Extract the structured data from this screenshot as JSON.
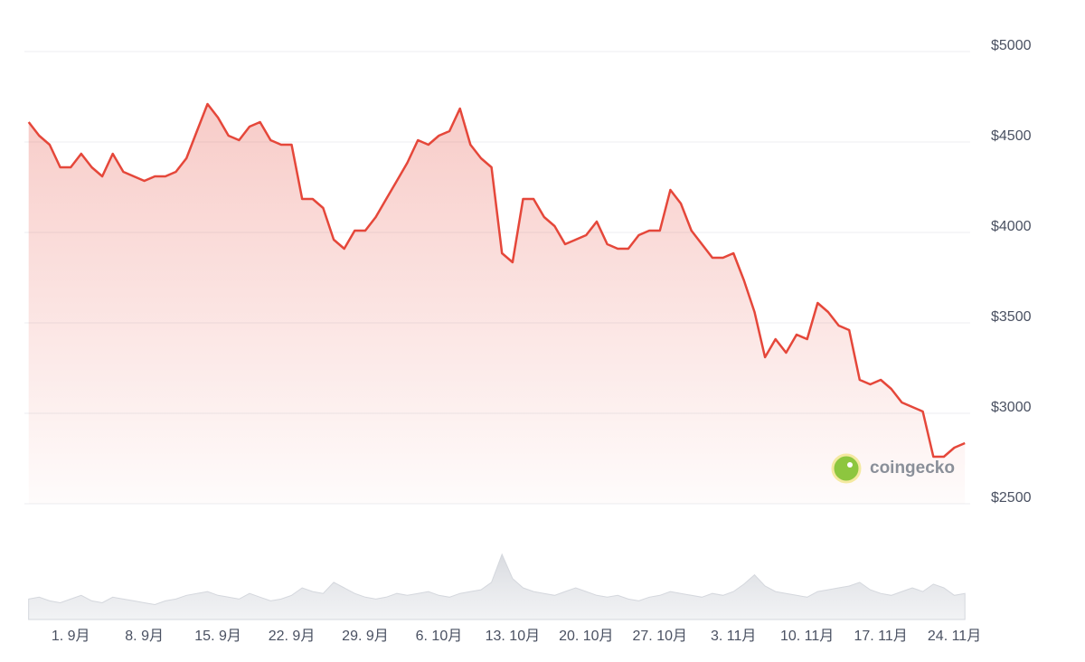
{
  "chart_data": {
    "type": "line",
    "series": [
      {
        "color": "#e5473a",
        "values": [
          4610,
          4535,
          4485,
          4360,
          4360,
          4435,
          4360,
          4310,
          4435,
          4335,
          4310,
          4285,
          4310,
          4310,
          4335,
          4410,
          4560,
          4710,
          4635,
          4535,
          4510,
          4585,
          4610,
          4510,
          4485,
          4485,
          4185,
          4185,
          4135,
          3960,
          3910,
          4010,
          4010,
          4085,
          4185,
          4285,
          4385,
          4510,
          4485,
          4535,
          4560,
          4685,
          4485,
          4410,
          4360,
          3885,
          3835,
          4185,
          4185,
          4085,
          4035,
          3935,
          3960,
          3985,
          4060,
          3935,
          3910,
          3910,
          3985,
          4010,
          4010,
          4235,
          4160,
          4010,
          3935,
          3860,
          3860,
          3885,
          3735,
          3560,
          3310,
          3410,
          3335,
          3435,
          3410,
          3610,
          3560,
          3485,
          3460,
          3185,
          3160,
          3185,
          3135,
          3060,
          3035,
          3010,
          2760,
          2760,
          2810,
          2835
        ]
      }
    ],
    "volume": [
      22,
      24,
      20,
      18,
      22,
      26,
      20,
      18,
      24,
      22,
      20,
      18,
      16,
      20,
      22,
      26,
      28,
      30,
      26,
      24,
      22,
      28,
      24,
      20,
      22,
      26,
      34,
      30,
      28,
      40,
      34,
      28,
      24,
      22,
      24,
      28,
      26,
      28,
      30,
      26,
      24,
      28,
      30,
      32,
      40,
      70,
      44,
      34,
      30,
      28,
      26,
      30,
      34,
      30,
      26,
      24,
      26,
      22,
      20,
      24,
      26,
      30,
      28,
      26,
      24,
      28,
      26,
      30,
      38,
      48,
      36,
      30,
      28,
      26,
      24,
      30,
      32,
      34,
      36,
      40,
      32,
      28,
      26,
      30,
      34,
      30,
      38,
      34,
      26,
      28
    ],
    "xlim": [
      -0.4,
      89.5
    ],
    "xticks": [
      {
        "value": 4,
        "label": "1. 9月"
      },
      {
        "value": 11,
        "label": "8. 9月"
      },
      {
        "value": 18,
        "label": "15. 9月"
      },
      {
        "value": 25,
        "label": "22. 9月"
      },
      {
        "value": 32,
        "label": "29. 9月"
      },
      {
        "value": 39,
        "label": "6. 10月"
      },
      {
        "value": 46,
        "label": "13. 10月"
      },
      {
        "value": 53,
        "label": "20. 10月"
      },
      {
        "value": 60,
        "label": "27. 10月"
      },
      {
        "value": 67,
        "label": "3. 11月"
      },
      {
        "value": 74,
        "label": "10. 11月"
      },
      {
        "value": 81,
        "label": "17. 11月"
      },
      {
        "value": 88,
        "label": "24. 11月"
      }
    ],
    "ylim": [
      2500,
      5000
    ],
    "yticks": [
      {
        "value": 2500,
        "label": "$2500"
      },
      {
        "value": 3000,
        "label": "$3000"
      },
      {
        "value": 3500,
        "label": "$3500"
      },
      {
        "value": 4000,
        "label": "$4000"
      },
      {
        "value": 4500,
        "label": "$4500"
      },
      {
        "value": 5000,
        "label": "$5000"
      }
    ],
    "grid": true,
    "watermark": "coingecko"
  }
}
